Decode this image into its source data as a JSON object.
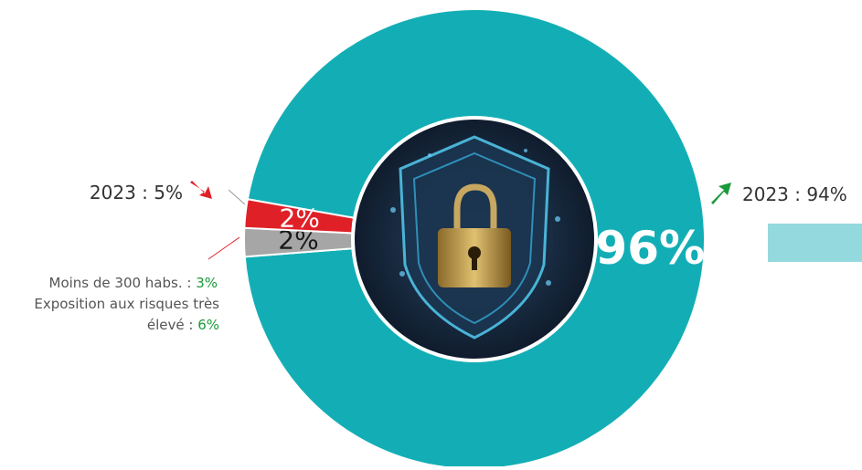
{
  "chart_data": {
    "type": "donut",
    "categories": [
      null,
      null,
      null
    ],
    "values": [
      96,
      2,
      2
    ],
    "value_labels": [
      "96%",
      "2%",
      "2%"
    ],
    "colors": [
      "#13aeb5",
      "#a6a6a6",
      "#e02027"
    ],
    "label_colors": [
      "#ffffff",
      "#1a1a1a",
      "#ffffff"
    ],
    "annotations": [
      {
        "label": "2023 :",
        "value": "5%"
      },
      {
        "label": "2023 :",
        "value": "94%"
      },
      {
        "label": "Moins de 300 habs. :",
        "value": "3%"
      },
      {
        "label": "Exposition aux risques très élevé :",
        "value": "6%"
      }
    ]
  }
}
